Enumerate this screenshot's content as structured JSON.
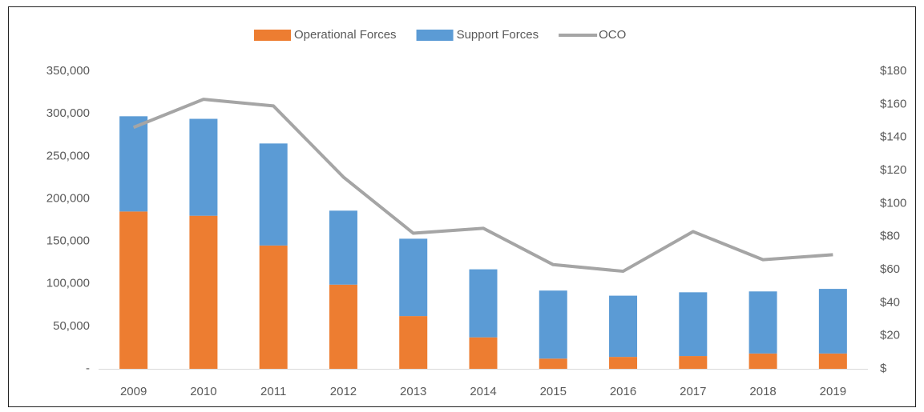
{
  "chart_data": {
    "type": "bar",
    "stacked": true,
    "categories": [
      "2009",
      "2010",
      "2011",
      "2012",
      "2013",
      "2014",
      "2015",
      "2016",
      "2017",
      "2018",
      "2019"
    ],
    "series": [
      {
        "name": "Operational Forces",
        "color": "#ed7d31",
        "values": [
          185000,
          180000,
          145000,
          99000,
          62000,
          37000,
          12000,
          14000,
          15000,
          18000,
          18000
        ]
      },
      {
        "name": "Support Forces",
        "color": "#5b9bd5",
        "values": [
          112000,
          114000,
          120000,
          87000,
          91000,
          80000,
          80000,
          72000,
          75000,
          73000,
          76000
        ]
      },
      {
        "name": "OCO",
        "color": "#a5a5a5",
        "type": "line",
        "axis": "y2",
        "values": [
          146,
          163,
          159,
          116,
          82,
          85,
          63,
          59,
          83,
          66,
          69
        ]
      }
    ],
    "ylim": [
      0,
      350000
    ],
    "yticks": [
      {
        "value": 0,
        "label": "-"
      },
      {
        "value": 50000,
        "label": "50,000"
      },
      {
        "value": 100000,
        "label": "100,000"
      },
      {
        "value": 150000,
        "label": "150,000"
      },
      {
        "value": 200000,
        "label": "200,000"
      },
      {
        "value": 250000,
        "label": "250,000"
      },
      {
        "value": 300000,
        "label": "300,000"
      },
      {
        "value": 350000,
        "label": "350,000"
      }
    ],
    "y2lim": [
      0,
      180
    ],
    "y2ticks": [
      {
        "value": 0,
        "label": "$"
      },
      {
        "value": 20,
        "label": "$20"
      },
      {
        "value": 40,
        "label": "$40"
      },
      {
        "value": 60,
        "label": "$60"
      },
      {
        "value": 80,
        "label": "$80"
      },
      {
        "value": 100,
        "label": "$100"
      },
      {
        "value": 120,
        "label": "$120"
      },
      {
        "value": 140,
        "label": "$140"
      },
      {
        "value": 160,
        "label": "$160"
      },
      {
        "value": 180,
        "label": "$180"
      }
    ],
    "grid": false,
    "legend": "top"
  }
}
